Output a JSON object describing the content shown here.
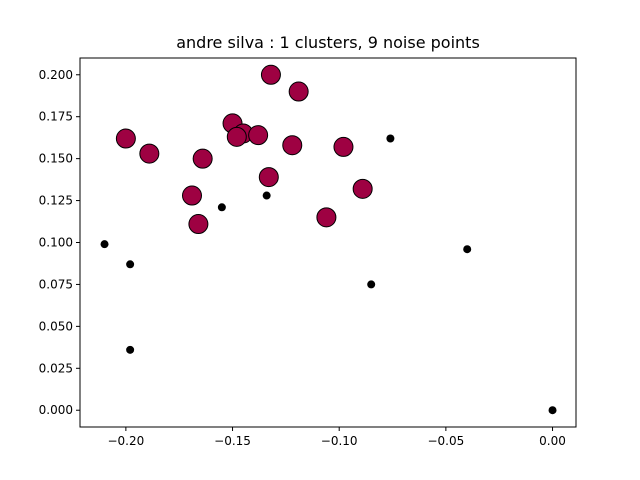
{
  "chart_data": {
    "type": "scatter",
    "title": "andre silva : 1 clusters, 9 noise points",
    "xlabel": "",
    "ylabel": "",
    "xlim": [
      -0.2215,
      0.011
    ],
    "ylim": [
      -0.01,
      0.21
    ],
    "xticks": [
      -0.2,
      -0.15,
      -0.1,
      -0.05,
      0.0
    ],
    "xtick_labels": [
      "−0.20",
      "−0.15",
      "−0.10",
      "−0.05",
      "0.00"
    ],
    "yticks": [
      0.0,
      0.025,
      0.05,
      0.075,
      0.1,
      0.125,
      0.15,
      0.175,
      0.2
    ],
    "ytick_labels": [
      "0.000",
      "0.025",
      "0.050",
      "0.075",
      "0.100",
      "0.125",
      "0.150",
      "0.175",
      "0.200"
    ],
    "grid": false,
    "colors": {
      "cluster": "#9e0142",
      "noise": "#000000",
      "edge": "#000000"
    },
    "series": [
      {
        "role": "cluster",
        "points": [
          {
            "x": -0.132,
            "y": 0.2
          },
          {
            "x": -0.119,
            "y": 0.19
          },
          {
            "x": -0.15,
            "y": 0.171
          },
          {
            "x": -0.145,
            "y": 0.165
          },
          {
            "x": -0.138,
            "y": 0.164
          },
          {
            "x": -0.148,
            "y": 0.163
          },
          {
            "x": -0.2,
            "y": 0.162
          },
          {
            "x": -0.122,
            "y": 0.158
          },
          {
            "x": -0.098,
            "y": 0.157
          },
          {
            "x": -0.189,
            "y": 0.153
          },
          {
            "x": -0.164,
            "y": 0.15
          },
          {
            "x": -0.133,
            "y": 0.139
          },
          {
            "x": -0.089,
            "y": 0.132
          },
          {
            "x": -0.169,
            "y": 0.128
          },
          {
            "x": -0.106,
            "y": 0.115
          },
          {
            "x": -0.166,
            "y": 0.111
          }
        ]
      },
      {
        "role": "noise",
        "points": [
          {
            "x": -0.076,
            "y": 0.162
          },
          {
            "x": -0.134,
            "y": 0.128
          },
          {
            "x": -0.155,
            "y": 0.121
          },
          {
            "x": -0.21,
            "y": 0.099
          },
          {
            "x": -0.04,
            "y": 0.096
          },
          {
            "x": -0.198,
            "y": 0.087
          },
          {
            "x": -0.085,
            "y": 0.075
          },
          {
            "x": -0.198,
            "y": 0.036
          },
          {
            "x": 0.0,
            "y": 0.0
          }
        ]
      }
    ]
  }
}
